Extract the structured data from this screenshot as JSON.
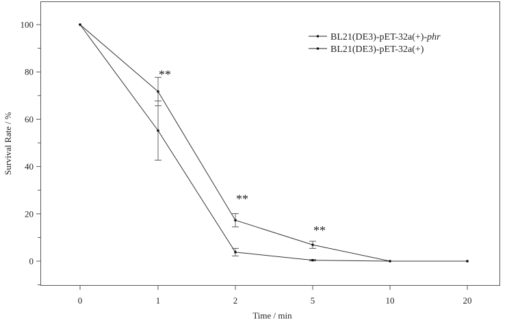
{
  "chart_data": {
    "type": "line",
    "title": "",
    "xlabel": "Time / min",
    "ylabel": "Survival Rate / %",
    "categories": [
      "0",
      "1",
      "2",
      "5",
      "10",
      "20"
    ],
    "ylim": [
      -8,
      110
    ],
    "yticks": [
      "0",
      "20",
      "40",
      "60",
      "80",
      "100"
    ],
    "grid": false,
    "legend_position": "upper right",
    "series": [
      {
        "name": "BL21(DE3)-pET-32a(+)-phr",
        "name_plain": "BL21(DE3)-pET-32a(+)-",
        "name_italic": "phr",
        "values": [
          100,
          71.7,
          17.3,
          6.9,
          0,
          0
        ],
        "errors": [
          0,
          6,
          2.8,
          1.5,
          0,
          0
        ]
      },
      {
        "name": "BL21(DE3)-pET-32a(+)",
        "values": [
          100,
          55.2,
          3.8,
          0.4,
          0,
          0
        ],
        "errors": [
          0,
          12.5,
          1.6,
          0.3,
          0,
          0
        ]
      }
    ],
    "annotations": [
      {
        "x": "1",
        "text": "**"
      },
      {
        "x": "2",
        "text": "**"
      },
      {
        "x": "5",
        "text": "**"
      }
    ]
  }
}
